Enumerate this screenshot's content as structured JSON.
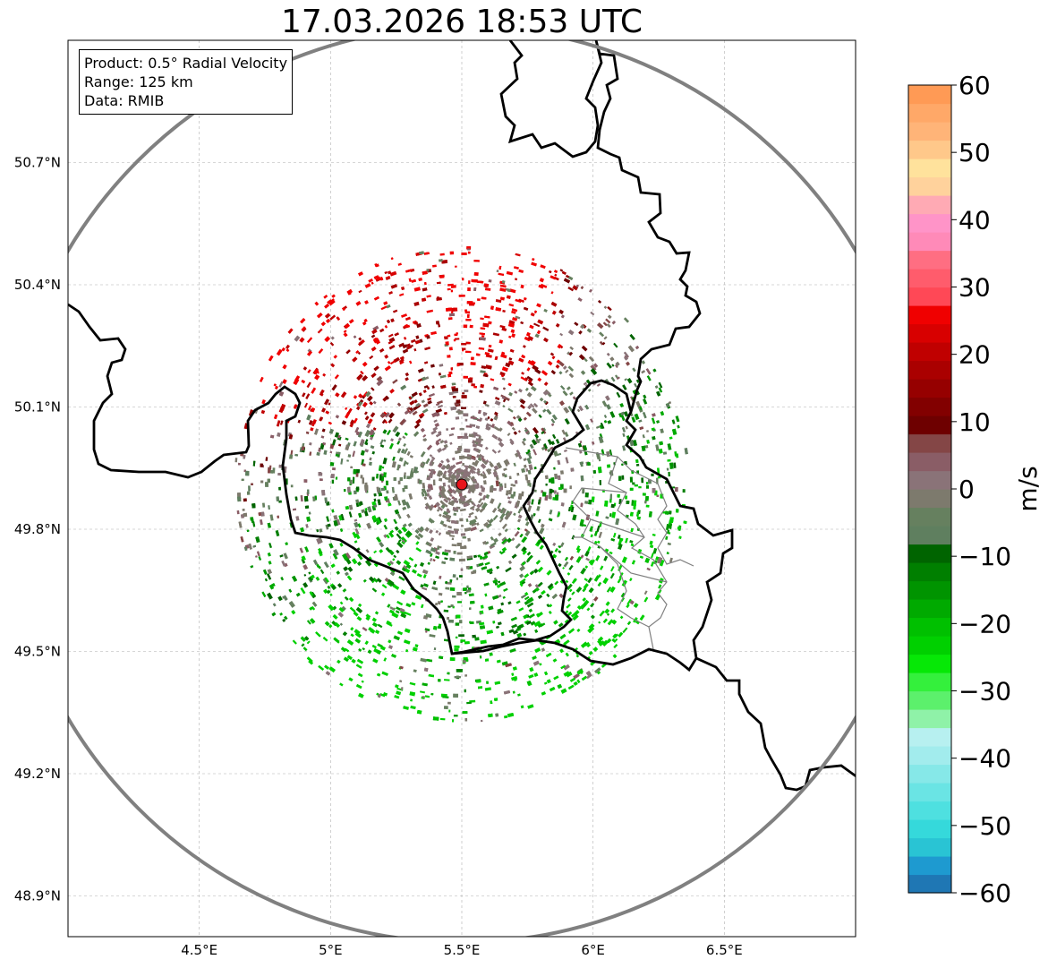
{
  "title": "17.03.2026 18:53 UTC",
  "info": {
    "product": "Product: 0.5° Radial Velocity",
    "range": "Range: 125 km",
    "data": "Data: RMIB"
  },
  "map": {
    "lon_range": [
      4.0,
      7.0
    ],
    "lat_range": [
      48.8,
      51.0
    ],
    "lon_ticks": [
      "4.5°E",
      "5°E",
      "5.5°E",
      "6°E",
      "6.5°E"
    ],
    "lat_ticks": [
      "50.7°N",
      "50.4°N",
      "50.1°N",
      "49.8°N",
      "49.5°N",
      "49.2°N",
      "48.9°N"
    ],
    "radar_site": {
      "lon": 5.5,
      "lat": 49.91
    },
    "range_ring_km": 125,
    "colors": {
      "border": "#000000",
      "ring": "#808080",
      "grid": "#b0b0b0",
      "site": "#e8141c"
    }
  },
  "colorbar": {
    "label": "m/s",
    "vmin": -60,
    "vmax": 60,
    "ticks": [
      "60",
      "50",
      "40",
      "30",
      "20",
      "10",
      "0",
      "−10",
      "−20",
      "−30",
      "−40",
      "−50",
      "−60"
    ],
    "colors": [
      "#1f77b4",
      "#1e9ad0",
      "#29c4d4",
      "#35d9db",
      "#4ee0e0",
      "#6ae4e4",
      "#86e8e8",
      "#a2eced",
      "#b7f0f0",
      "#8ff2a8",
      "#5cf06c",
      "#34f03c",
      "#06e806",
      "#00d000",
      "#00c000",
      "#00aa00",
      "#009400",
      "#007f00",
      "#006400",
      "#5f7f5f",
      "#66805f",
      "#7d7a6d",
      "#8a7378",
      "#8a5d66",
      "#844646",
      "#6e0000",
      "#820000",
      "#960000",
      "#aa0000",
      "#c00000",
      "#d80000",
      "#f00000",
      "#ff4856",
      "#ff5c6c",
      "#ff6e82",
      "#ff8ab8",
      "#ff94c8",
      "#ffaab4",
      "#ffd29c",
      "#ffe29c",
      "#ffc88a",
      "#ffb478",
      "#ffa868",
      "#ff9a55"
    ]
  }
}
